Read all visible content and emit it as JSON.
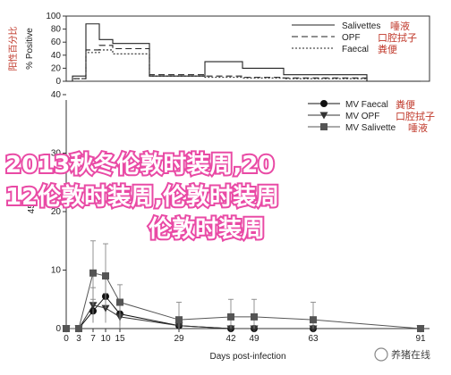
{
  "chart_data": [
    {
      "type": "line",
      "ylabel": "% Positive",
      "ylabel_cn": "阳性百分比",
      "ylim": [
        0,
        100
      ],
      "yticks": [
        0,
        20,
        40,
        60,
        80,
        100
      ],
      "legend_position": "top-right",
      "series": [
        {
          "name": "Salivettes",
          "name_cn": "唾液",
          "style": "solid",
          "x": [
            0,
            3,
            7,
            10,
            15,
            29,
            42,
            49,
            63,
            91
          ],
          "values": [
            0,
            8,
            88,
            64,
            58,
            8,
            30,
            20,
            10,
            0
          ]
        },
        {
          "name": "OPF",
          "name_cn": "口腔拭子",
          "style": "dashed",
          "x": [
            0,
            3,
            7,
            10,
            15,
            29,
            42,
            49,
            63,
            91
          ],
          "values": [
            0,
            4,
            48,
            55,
            50,
            10,
            8,
            6,
            5,
            0
          ]
        },
        {
          "name": "Faecal",
          "name_cn": "粪便",
          "style": "dotted",
          "x": [
            0,
            3,
            7,
            10,
            15,
            29,
            42,
            49,
            63,
            91
          ],
          "values": [
            0,
            4,
            44,
            48,
            42,
            8,
            6,
            5,
            4,
            0
          ]
        }
      ]
    },
    {
      "type": "line",
      "xlabel": "Days post-infection",
      "ylabel": "45-",
      "ylim": [
        0,
        40
      ],
      "yticks": [
        0,
        10,
        20,
        30,
        40
      ],
      "xticks": [
        0,
        3,
        7,
        10,
        15,
        29,
        42,
        49,
        63,
        91
      ],
      "legend_position": "top-right",
      "series": [
        {
          "name": "MV Faecal",
          "name_cn": "粪便",
          "marker": "circle",
          "x": [
            0,
            3,
            7,
            10,
            15,
            29,
            42,
            49,
            63,
            91
          ],
          "values": [
            0,
            0,
            3,
            5.5,
            2.5,
            0.5,
            0,
            0,
            0,
            0
          ],
          "err": [
            0,
            0,
            2,
            3,
            2,
            1,
            0,
            0,
            0,
            0
          ]
        },
        {
          "name": "MV OPF",
          "name_cn": "口腔拭子",
          "marker": "triangle",
          "x": [
            0,
            3,
            7,
            10,
            15,
            29,
            42,
            49,
            63,
            91
          ],
          "values": [
            0,
            0,
            4,
            3.5,
            2,
            0.5,
            0,
            0,
            0,
            0
          ],
          "err": [
            0,
            0,
            3,
            2.5,
            2,
            1,
            0,
            0,
            0,
            0
          ]
        },
        {
          "name": "MV Salivette",
          "name_cn": "唾液",
          "marker": "square",
          "x": [
            0,
            3,
            7,
            10,
            15,
            29,
            42,
            49,
            63,
            91
          ],
          "values": [
            0,
            0,
            9.5,
            9,
            4.5,
            1.5,
            2,
            2,
            1.5,
            0
          ],
          "err": [
            0,
            0,
            5.5,
            5.5,
            3,
            3,
            3,
            3,
            3,
            0
          ]
        }
      ]
    }
  ],
  "overlay": {
    "line1": "2013秋冬伦敦时装周,20",
    "line2": "12伦敦时装周,伦敦时装周",
    "line3": "伦敦时装周"
  },
  "watermark": {
    "text": "养猪在线"
  }
}
